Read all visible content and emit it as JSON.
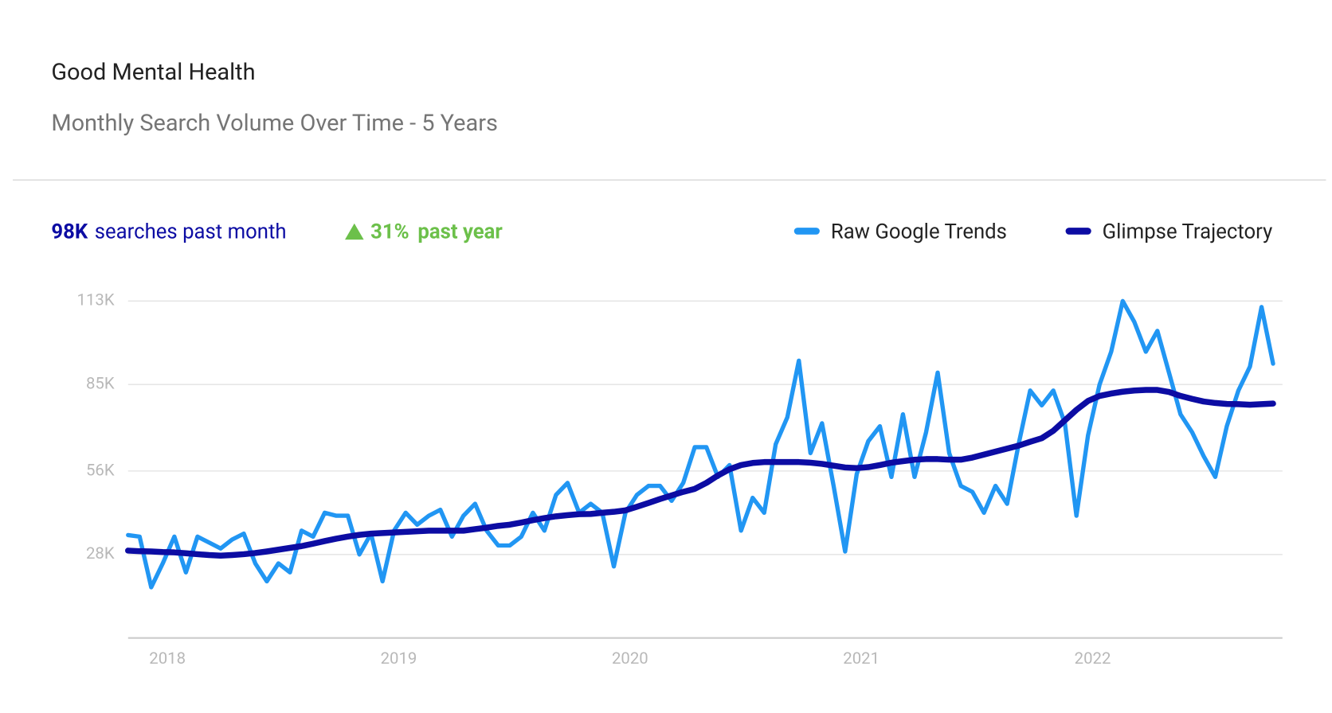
{
  "header": {
    "title": "Good Mental Health",
    "subtitle": "Monthly Search Volume Over Time - 5 Years"
  },
  "stats": {
    "volume": "98K",
    "volume_label": "searches past month",
    "growth": "31%",
    "growth_label": "past year"
  },
  "chart_data": {
    "type": "line",
    "x": [
      2017.83,
      2017.88,
      2017.93,
      2017.98,
      2018.03,
      2018.08,
      2018.13,
      2018.18,
      2018.23,
      2018.28,
      2018.33,
      2018.38,
      2018.43,
      2018.48,
      2018.53,
      2018.58,
      2018.63,
      2018.68,
      2018.73,
      2018.78,
      2018.83,
      2018.88,
      2018.93,
      2018.98,
      2019.03,
      2019.08,
      2019.13,
      2019.18,
      2019.23,
      2019.28,
      2019.33,
      2019.38,
      2019.43,
      2019.48,
      2019.53,
      2019.58,
      2019.63,
      2019.68,
      2019.73,
      2019.78,
      2019.83,
      2019.88,
      2019.93,
      2019.98,
      2020.03,
      2020.08,
      2020.13,
      2020.18,
      2020.23,
      2020.28,
      2020.33,
      2020.38,
      2020.43,
      2020.48,
      2020.53,
      2020.58,
      2020.63,
      2020.68,
      2020.73,
      2020.78,
      2020.83,
      2020.88,
      2020.93,
      2020.98,
      2021.03,
      2021.08,
      2021.13,
      2021.18,
      2021.23,
      2021.28,
      2021.33,
      2021.38,
      2021.43,
      2021.48,
      2021.53,
      2021.58,
      2021.63,
      2021.68,
      2021.73,
      2021.78,
      2021.83,
      2021.88,
      2021.93,
      2021.98,
      2022.03,
      2022.08,
      2022.13,
      2022.18,
      2022.23,
      2022.28,
      2022.33,
      2022.38,
      2022.43,
      2022.48,
      2022.53,
      2022.58,
      2022.63,
      2022.68,
      2022.73,
      2022.78
    ],
    "series": [
      {
        "name": "Raw Google Trends",
        "color": "#2196f3",
        "values": [
          34.5,
          34,
          17,
          25,
          34,
          22,
          34,
          32,
          30,
          33,
          35,
          25,
          19,
          25,
          22,
          36,
          34,
          42,
          41,
          41,
          28,
          35,
          19,
          36,
          42,
          38,
          41,
          43,
          34,
          41,
          45,
          36,
          31,
          31,
          34,
          42,
          36,
          48,
          52,
          42,
          45,
          42,
          24,
          42,
          48,
          51,
          51,
          46,
          52,
          64,
          64,
          54,
          58,
          36,
          47,
          42,
          65,
          74,
          93,
          62,
          72,
          51,
          29,
          55,
          66,
          71,
          54,
          75,
          54,
          69,
          89,
          62,
          51,
          49,
          42,
          51,
          45,
          65,
          83,
          78,
          83,
          72,
          41,
          68,
          85,
          96,
          113,
          106,
          96,
          103,
          89,
          75,
          69,
          61,
          54,
          71,
          83,
          91,
          111,
          92
        ]
      },
      {
        "name": "Glimpse Trajectory",
        "color": "#0c0ca3",
        "values": [
          29.3,
          29.1,
          29,
          28.8,
          28.7,
          28.4,
          28.1,
          27.8,
          27.6,
          27.8,
          28.1,
          28.5,
          29,
          29.6,
          30.2,
          30.8,
          31.6,
          32.5,
          33.3,
          34,
          34.6,
          35,
          35.2,
          35.4,
          35.6,
          35.8,
          36,
          36,
          36,
          36,
          36.5,
          37,
          37.6,
          38,
          38.7,
          39.5,
          40.2,
          40.8,
          41.2,
          41.5,
          41.6,
          42,
          42.3,
          42.8,
          44,
          45.3,
          46.6,
          47.8,
          49,
          50,
          52,
          54.5,
          56.6,
          58,
          58.7,
          59,
          59,
          59,
          59,
          58.8,
          58.4,
          57.8,
          57.2,
          57,
          57.3,
          58,
          58.8,
          59.3,
          59.8,
          60,
          60,
          59.8,
          59.8,
          60.5,
          61.5,
          62.5,
          63.5,
          64.5,
          65.8,
          67,
          69.5,
          73,
          76.5,
          79.5,
          81.2,
          82,
          82.6,
          83,
          83.2,
          83.2,
          82.5,
          81.2,
          80.2,
          79.3,
          78.8,
          78.5,
          78.4,
          78.2,
          78.4,
          78.6
        ]
      }
    ],
    "xlim": [
      2017.83,
      2022.78
    ],
    "xticks": [
      2018,
      2019,
      2020,
      2021,
      2022
    ],
    "ylim": [
      0,
      113
    ],
    "yticks": [
      {
        "value": 28,
        "label": "28K"
      },
      {
        "value": 56,
        "label": "56K"
      },
      {
        "value": 85,
        "label": "85K"
      },
      {
        "value": 113,
        "label": "113K"
      }
    ],
    "grid": true
  }
}
